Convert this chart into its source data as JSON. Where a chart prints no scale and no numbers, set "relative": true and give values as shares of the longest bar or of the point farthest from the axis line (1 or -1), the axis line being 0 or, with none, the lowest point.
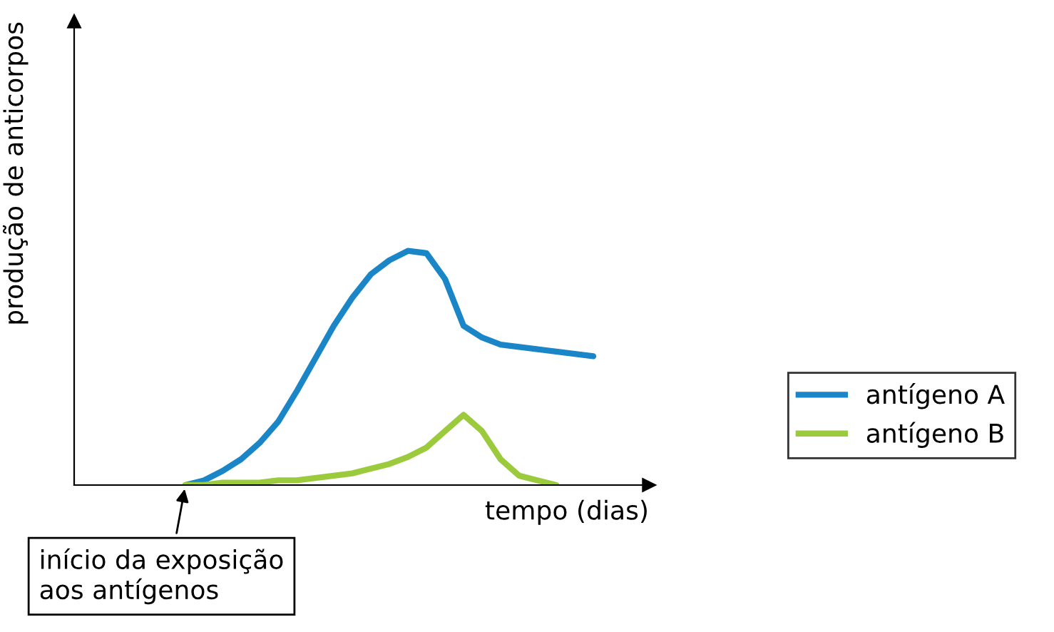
{
  "chart_data": {
    "type": "line",
    "relative": true,
    "xlabel": "tempo (dias)",
    "ylabel": "produção de anticorpos",
    "categories": [
      null,
      null,
      null,
      null,
      null,
      null,
      null,
      null,
      null,
      null,
      null,
      null,
      null,
      null,
      null,
      null,
      null,
      null,
      null,
      null,
      null,
      null,
      null,
      null,
      null,
      null,
      null,
      null,
      null,
      null,
      null
    ],
    "series": [
      {
        "name": "antígeno A",
        "color": "#1a86c8",
        "values": [
          null,
          null,
          null,
          null,
          null,
          null,
          0,
          0.02,
          0.06,
          0.11,
          0.18,
          0.27,
          0.4,
          0.54,
          0.68,
          0.8,
          0.9,
          0.96,
          1,
          0.99,
          0.88,
          0.68,
          0.63,
          0.6,
          0.59,
          0.58,
          0.57,
          0.56,
          0.55,
          null,
          null
        ]
      },
      {
        "name": "antígeno B",
        "color": "#9bcb3c",
        "values": [
          null,
          null,
          null,
          null,
          null,
          null,
          0,
          0,
          0.01,
          0.01,
          0.01,
          0.02,
          0.02,
          0.03,
          0.04,
          0.05,
          0.07,
          0.09,
          0.12,
          0.16,
          0.23,
          0.3,
          0.23,
          0.11,
          0.04,
          0.02,
          0,
          null,
          null,
          null,
          null
        ]
      }
    ],
    "annotations": [
      "início da exposição\naos antígenos"
    ],
    "legend": "right",
    "grid": false,
    "marker": "none",
    "line_style": "solid"
  }
}
